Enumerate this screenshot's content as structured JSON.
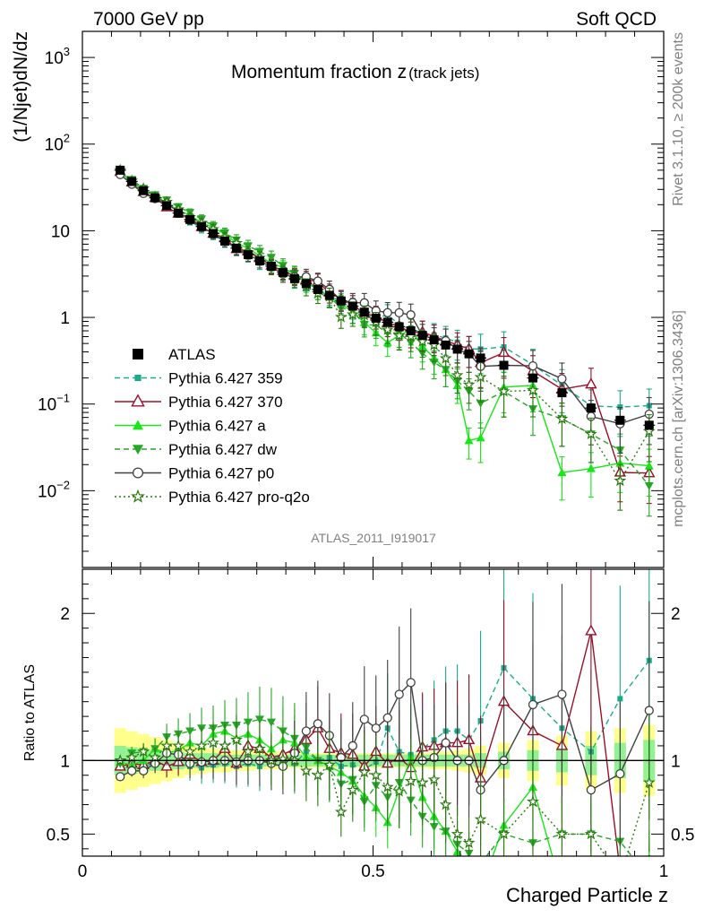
{
  "header": {
    "left": "7000 GeV pp",
    "right": "Soft QCD"
  },
  "side_labels": {
    "top": "Rivet 3.1.10, ≥ 200k events",
    "bottom": "mcplots.cern.ch [arXiv:1306.3436]"
  },
  "chart_data": {
    "type": "scatter",
    "title": "Momentum fraction z",
    "title_sub": "(track jets)",
    "analysis_tag": "ATLAS_2011_I919017",
    "xlabel": "Charged Particle z",
    "ylabel": "(1/Njet)dN/dz",
    "ratio_ylabel": "Ratio to ATLAS",
    "xlim": [
      0,
      1
    ],
    "ylim": [
      0.0013,
      2000
    ],
    "yscale": "log",
    "ratio_ylim": [
      0.35,
      2.3
    ],
    "x_ticks": [
      0,
      0.5,
      1
    ],
    "x_tick_labels": [
      "0",
      "0.5",
      "1"
    ],
    "y_tick_labels": [
      {
        "value": 1000,
        "base": "10",
        "exp": "3"
      },
      {
        "value": 100,
        "base": "10",
        "exp": "2"
      },
      {
        "value": 10,
        "base": "10",
        "exp": ""
      },
      {
        "value": 1,
        "base": "1",
        "exp": ""
      },
      {
        "value": 0.1,
        "base": "10",
        "exp": "−1"
      },
      {
        "value": 0.01,
        "base": "10",
        "exp": "−2"
      }
    ],
    "ratio_ticks": [
      0.5,
      1,
      2
    ],
    "ratio_tick_labels": [
      "0.5",
      "1",
      "2"
    ],
    "legend_position": "left",
    "x": [
      0.065,
      0.085,
      0.105,
      0.125,
      0.145,
      0.165,
      0.185,
      0.205,
      0.225,
      0.245,
      0.265,
      0.285,
      0.305,
      0.325,
      0.345,
      0.365,
      0.385,
      0.405,
      0.425,
      0.445,
      0.465,
      0.485,
      0.505,
      0.525,
      0.545,
      0.565,
      0.585,
      0.605,
      0.625,
      0.645,
      0.665,
      0.685,
      0.725,
      0.775,
      0.825,
      0.875,
      0.925,
      0.975
    ],
    "x_err": 0.01,
    "data": {
      "name": "ATLAS",
      "values": [
        50,
        37,
        29,
        24,
        19.5,
        16,
        13.5,
        11.2,
        9.3,
        7.6,
        6.3,
        5.3,
        4.5,
        3.9,
        3.3,
        2.8,
        2.45,
        2.1,
        1.8,
        1.55,
        1.35,
        1.15,
        0.98,
        0.88,
        0.78,
        0.7,
        0.62,
        0.55,
        0.48,
        0.43,
        0.38,
        0.34,
        0.28,
        0.2,
        0.135,
        0.09,
        0.065,
        0.057
      ],
      "band_inner": [
        0.1,
        0.09,
        0.08,
        0.07,
        0.065,
        0.06,
        0.05,
        0.05,
        0.05,
        0.04,
        0.04,
        0.04,
        0.04,
        0.04,
        0.04,
        0.04,
        0.04,
        0.04,
        0.04,
        0.04,
        0.04,
        0.04,
        0.04,
        0.04,
        0.04,
        0.04,
        0.04,
        0.04,
        0.04,
        0.04,
        0.04,
        0.05,
        0.06,
        0.07,
        0.08,
        0.1,
        0.12,
        0.14
      ],
      "band_outer": [
        0.22,
        0.2,
        0.18,
        0.16,
        0.14,
        0.12,
        0.1,
        0.09,
        0.08,
        0.08,
        0.07,
        0.07,
        0.06,
        0.06,
        0.06,
        0.05,
        0.05,
        0.05,
        0.05,
        0.05,
        0.05,
        0.05,
        0.05,
        0.05,
        0.05,
        0.05,
        0.05,
        0.06,
        0.06,
        0.07,
        0.08,
        0.1,
        0.12,
        0.14,
        0.17,
        0.2,
        0.22,
        0.24
      ]
    },
    "series": [
      {
        "name": "Pythia 6.427 359",
        "color": "#1aab8a",
        "line": "dashed",
        "marker": "square-small",
        "ratio": [
          0.96,
          0.93,
          0.96,
          0.98,
          0.96,
          0.98,
          0.96,
          0.95,
          0.97,
          0.98,
          0.96,
          0.98,
          0.96,
          1.02,
          1.01,
          0.98,
          1.06,
          1.0,
          1.02,
          0.96,
          0.97,
          0.94,
          0.99,
          1.22,
          1.06,
          1.04,
          1.08,
          1.14,
          1.2,
          1.2,
          1.14,
          1.27,
          1.63,
          1.42,
          1.22,
          1.06,
          1.42,
          1.68
        ]
      },
      {
        "name": "Pythia 6.427 370",
        "color": "#99102a",
        "line": "solid",
        "marker": "triangle-open",
        "ratio": [
          0.96,
          0.98,
          0.97,
          1.0,
          0.96,
          0.99,
          1.04,
          0.99,
          1.0,
          1.08,
          0.98,
          1.1,
          1.08,
          1.02,
          1.04,
          1.08,
          1.14,
          1.22,
          1.08,
          1.05,
          1.04,
          0.96,
          1.06,
          0.98,
          1.02,
          0.95,
          1.09,
          1.1,
          1.12,
          1.12,
          1.14,
          0.88,
          1.4,
          1.2,
          1.1,
          1.88,
          0.25,
          0.28
        ]
      },
      {
        "name": "Pythia 6.427 a",
        "color": "#17e617",
        "line": "solid",
        "marker": "triangle",
        "ratio": [
          0.99,
          0.97,
          1.0,
          1.08,
          1.05,
          1.07,
          1.12,
          1.1,
          1.18,
          1.2,
          1.15,
          1.18,
          1.14,
          1.08,
          1.14,
          1.12,
          1.02,
          1.0,
          0.96,
          0.92,
          0.86,
          0.76,
          0.68,
          0.58,
          0.8,
          1.02,
          0.75,
          0.62,
          0.52,
          0.38,
          0.1,
          0.12,
          0.56,
          0.82,
          0.12,
          0.2,
          0.32,
          0.34
        ]
      },
      {
        "name": "Pythia 6.427 dw",
        "color": "#26a626",
        "line": "dashed",
        "marker": "triangle-down",
        "ratio": [
          0.98,
          1.05,
          1.06,
          1.08,
          1.16,
          1.18,
          1.2,
          1.22,
          1.22,
          1.24,
          1.24,
          1.26,
          1.28,
          1.26,
          1.2,
          1.15,
          1.09,
          1.0,
          0.95,
          0.84,
          0.87,
          0.72,
          0.83,
          0.75,
          0.85,
          0.73,
          0.62,
          0.55,
          0.52,
          0.43,
          0.37,
          0.3,
          0.5,
          0.44,
          0.5,
          0.5,
          0.45,
          0.2
        ]
      },
      {
        "name": "Pythia 6.427 p0",
        "color": "#404040",
        "line": "solid",
        "marker": "circle-open",
        "ratio": [
          0.89,
          0.93,
          0.93,
          0.98,
          1.05,
          1.04,
          0.98,
          0.99,
          1.0,
          1.0,
          0.99,
          1.0,
          1.0,
          0.98,
          0.96,
          1.05,
          1.2,
          1.25,
          1.17,
          1.02,
          1.1,
          1.28,
          1.22,
          1.29,
          1.45,
          1.53,
          1.0,
          1.02,
          1.12,
          1.0,
          1.0,
          0.8,
          1.0,
          1.38,
          1.45,
          0.8,
          0.91,
          1.34
        ]
      },
      {
        "name": "Pythia 6.427 pro-q2o",
        "color": "#2a7a0f",
        "line": "dotted",
        "marker": "star",
        "ratio": [
          1.0,
          1.02,
          1.06,
          1.02,
          1.1,
          1.1,
          1.06,
          1.1,
          1.12,
          1.1,
          1.14,
          1.06,
          1.08,
          1.0,
          1.01,
          1.0,
          0.93,
          0.9,
          0.97,
          0.65,
          0.8,
          0.92,
          0.9,
          0.82,
          0.79,
          0.86,
          0.85,
          0.87,
          0.7,
          0.5,
          0.44,
          0.6,
          0.5,
          0.72,
          0.5,
          0.5,
          0.2,
          0.85
        ]
      }
    ]
  }
}
